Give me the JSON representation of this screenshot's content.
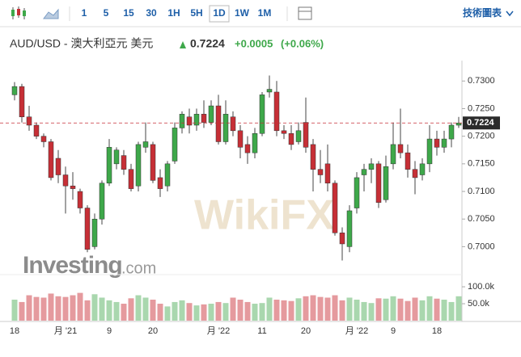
{
  "toolbar": {
    "intervals": [
      "1",
      "5",
      "15",
      "30",
      "1H",
      "5H",
      "1D",
      "1W",
      "1M"
    ],
    "active": 6,
    "tools": "技術圖表"
  },
  "chart_data": {
    "type": "candlestick",
    "title": "AUD/USD - 澳大利亞元 美元",
    "last": 0.7224,
    "change": "+0.0005",
    "change_pct": "(+0.06%)",
    "watermark": {
      "brand": "Investing",
      "suffix": ".com",
      "partner": "WikiFX"
    },
    "categories": [
      "18",
      null,
      null,
      null,
      null,
      null,
      null,
      "月 '21",
      null,
      null,
      null,
      null,
      null,
      "9",
      null,
      null,
      null,
      null,
      null,
      "20",
      null,
      null,
      null,
      null,
      null,
      null,
      null,
      null,
      "月 '22",
      null,
      null,
      null,
      null,
      null,
      "11",
      null,
      null,
      null,
      null,
      null,
      "20",
      null,
      null,
      null,
      null,
      null,
      null,
      "月 '22",
      null,
      null,
      null,
      null,
      "9",
      null,
      null,
      null,
      null,
      null,
      "18",
      null,
      null,
      null
    ],
    "open": [
      0.7275,
      0.729,
      0.7235,
      0.722,
      0.72,
      0.719,
      0.716,
      0.713,
      0.711,
      0.71,
      0.707,
      0.7,
      0.705,
      0.7115,
      0.715,
      0.7165,
      0.714,
      0.711,
      0.718,
      0.7185,
      0.7125,
      0.711,
      0.7155,
      0.7215,
      0.7235,
      0.722,
      0.724,
      0.7225,
      0.7255,
      0.719,
      0.7235,
      0.721,
      0.7185,
      0.717,
      0.7205,
      0.728,
      0.728,
      0.721,
      0.7205,
      0.719,
      0.7225,
      0.7185,
      0.714,
      0.715,
      0.7115,
      0.7025,
      0.7,
      0.707,
      0.713,
      0.714,
      0.715,
      0.7085,
      0.715,
      0.7185,
      0.717,
      0.714,
      0.713,
      0.715,
      0.7195,
      0.718,
      0.7195,
      0.722
    ],
    "high": [
      0.7298,
      0.7295,
      0.7255,
      0.7225,
      0.7205,
      0.7195,
      0.7175,
      0.7145,
      0.7135,
      0.7105,
      0.7075,
      0.706,
      0.712,
      0.7195,
      0.718,
      0.7175,
      0.715,
      0.719,
      0.7225,
      0.719,
      0.714,
      0.7155,
      0.7225,
      0.7245,
      0.725,
      0.725,
      0.7265,
      0.7265,
      0.7275,
      0.7265,
      0.7245,
      0.722,
      0.72,
      0.7215,
      0.728,
      0.731,
      0.73,
      0.722,
      0.722,
      0.7225,
      0.727,
      0.7195,
      0.7175,
      0.7185,
      0.712,
      0.7035,
      0.7075,
      0.7135,
      0.715,
      0.716,
      0.7155,
      0.7165,
      0.7225,
      0.725,
      0.7185,
      0.7155,
      0.716,
      0.722,
      0.721,
      0.721,
      0.7225,
      0.7235
    ],
    "low": [
      0.7265,
      0.7225,
      0.721,
      0.7195,
      0.718,
      0.712,
      0.7115,
      0.706,
      0.7085,
      0.706,
      0.699,
      0.6995,
      0.704,
      0.711,
      0.714,
      0.713,
      0.71,
      0.71,
      0.717,
      0.7115,
      0.709,
      0.71,
      0.715,
      0.7205,
      0.7205,
      0.721,
      0.7215,
      0.722,
      0.7185,
      0.7185,
      0.72,
      0.716,
      0.715,
      0.716,
      0.72,
      0.727,
      0.72,
      0.7195,
      0.7175,
      0.7185,
      0.717,
      0.71,
      0.7115,
      0.71,
      0.702,
      0.6975,
      0.699,
      0.706,
      0.71,
      0.7115,
      0.707,
      0.708,
      0.714,
      0.716,
      0.7125,
      0.7095,
      0.712,
      0.7135,
      0.7165,
      0.717,
      0.718,
      0.7215
    ],
    "close": [
      0.729,
      0.7235,
      0.722,
      0.72,
      0.719,
      0.7125,
      0.713,
      0.711,
      0.7105,
      0.707,
      0.6995,
      0.705,
      0.7115,
      0.718,
      0.7175,
      0.714,
      0.7105,
      0.7185,
      0.719,
      0.712,
      0.7105,
      0.715,
      0.7215,
      0.724,
      0.722,
      0.724,
      0.7225,
      0.7255,
      0.719,
      0.724,
      0.721,
      0.718,
      0.717,
      0.7205,
      0.7275,
      0.7285,
      0.721,
      0.7205,
      0.7185,
      0.721,
      0.718,
      0.714,
      0.713,
      0.7115,
      0.7025,
      0.7005,
      0.7065,
      0.7125,
      0.714,
      0.715,
      0.708,
      0.7145,
      0.7185,
      0.717,
      0.714,
      0.7125,
      0.715,
      0.7195,
      0.718,
      0.7195,
      0.722,
      0.7224
    ],
    "volume": [
      62000,
      55000,
      75000,
      70000,
      68000,
      80000,
      72000,
      70000,
      75000,
      82000,
      60000,
      78000,
      68000,
      60000,
      55000,
      50000,
      66000,
      75000,
      68000,
      62000,
      50000,
      42000,
      55000,
      60000,
      52000,
      45000,
      48000,
      50000,
      55000,
      52000,
      68000,
      62000,
      55000,
      50000,
      52000,
      68000,
      62000,
      60000,
      58000,
      66000,
      72000,
      75000,
      70000,
      68000,
      75000,
      60000,
      68000,
      62000,
      55000,
      52000,
      66000,
      65000,
      72000,
      65000,
      58000,
      68000,
      60000,
      72000,
      65000,
      62000,
      55000,
      72000
    ],
    "up_color": "#3ea84a",
    "down_color": "#c62f36",
    "volume_up_color": "#a9d7ae",
    "volume_down_color": "#e59a9e",
    "ylim": [
      0.6964,
      0.7337
    ],
    "yticks": [
      {
        "value": 0.73,
        "label": "0.7300"
      },
      {
        "value": 0.725,
        "label": "0.7250"
      },
      {
        "value": 0.72,
        "label": "0.7200"
      },
      {
        "value": 0.715,
        "label": "0.7150"
      },
      {
        "value": 0.71,
        "label": "0.7100"
      },
      {
        "value": 0.705,
        "label": "0.7050"
      },
      {
        "value": 0.7,
        "label": "0.7000"
      }
    ],
    "vlim": [
      0,
      124000
    ],
    "vticks": [
      {
        "value": 100000,
        "label": "100.0k"
      },
      {
        "value": 50000,
        "label": "50.0k"
      }
    ],
    "grid": false
  }
}
